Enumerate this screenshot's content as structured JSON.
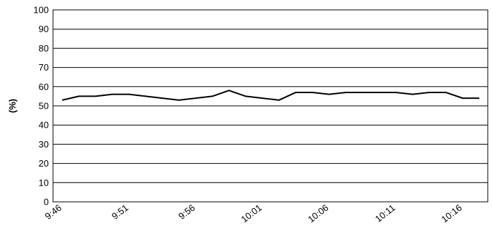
{
  "chart_data": {
    "type": "line",
    "y_label": "(%)",
    "categories": [
      "9:46",
      null,
      null,
      null,
      "9:51",
      null,
      null,
      null,
      "9:56",
      null,
      null,
      null,
      "10:01",
      null,
      null,
      null,
      "10:06",
      null,
      null,
      null,
      "10:11",
      null,
      null,
      null,
      "10:16",
      null
    ],
    "series": [
      {
        "name": null,
        "color": "#000000",
        "values": [
          53,
          55,
          55,
          56,
          56,
          55,
          54,
          53,
          54,
          55,
          58,
          55,
          54,
          53,
          57,
          57,
          56,
          57,
          57,
          57,
          57,
          56,
          57,
          57,
          54,
          54
        ]
      }
    ],
    "ylim": [
      0,
      100
    ],
    "yticks": [
      0,
      10,
      20,
      30,
      40,
      50,
      60,
      70,
      80,
      90,
      100
    ],
    "grid": true
  }
}
